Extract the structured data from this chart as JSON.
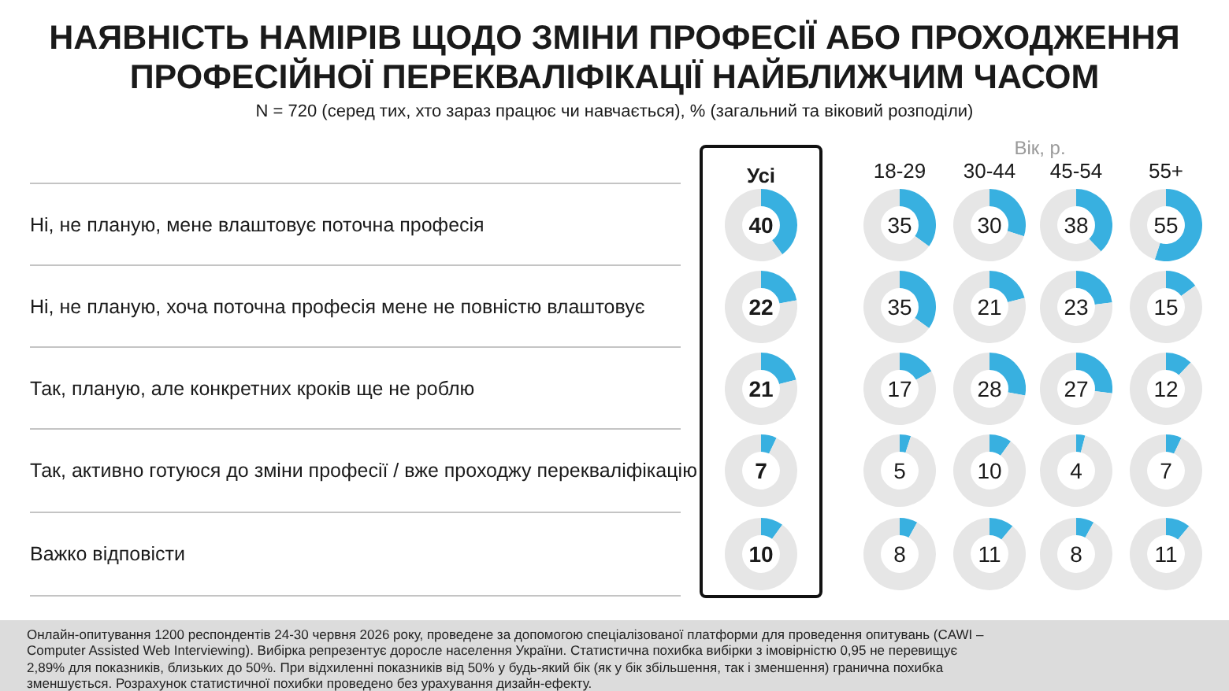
{
  "chart_data": [
    {
      "type": "other",
      "title": "НАЯВНІСТЬ НАМІРІВ ЩОДО ЗМІНИ ПРОФЕСІЇ АБО ПРОХОДЖЕННЯ ПРОФЕСІЙНОЇ ПЕРЕКВАЛІФІКАЦІЇ НАЙБЛИЖЧИМ ЧАСОМ",
      "subtitle": "N = 720 (серед тих, хто зараз працює чи навчається), % (загальний та віковий розподіли)",
      "categories": [
        "Ні, не планую, мене влаштовує поточна професія",
        "Ні, не планую, хоча поточна професія мене не повністю влаштовує",
        "Так, планую, але конкретних кроків ще не роблю",
        "Так, активно готуюся до зміни професії / вже проходжу перекваліфікацію",
        "Важко відповісти"
      ],
      "annotations": [
        "Вік, р.",
        "Усі",
        "18-29",
        "30-44",
        "45-54",
        "55+",
        "Онлайн-опитування 1200 респондентів 24-30 червня 2026 року, проведене за допомогою спеціалізованої платформи для проведення опитувань (CAWI – Computer Assisted Web Interviewing). Вибірка репрезентує доросле населення України. Статистична похибка вибірки з імовірністю 0,95 не перевищує 2,89% для показників, близьких до 50%. При відхиленні показників від 50% у будь-який бік (як у бік збільшення, так і зменшення) гранична похибка зменшується. Розрахунок статистичної похибки проведено без урахування дизайн-ефекту."
      ]
    },
    {
      "type": "donut",
      "categories": [
        null,
        null
      ],
      "values": [
        40,
        60
      ],
      "colors": [
        "#38b0e0",
        "#e6e6e6"
      ],
      "value_labels": [
        "40",
        null
      ]
    },
    {
      "type": "donut",
      "categories": [
        null,
        null
      ],
      "values": [
        35,
        65
      ],
      "colors": [
        "#38b0e0",
        "#e6e6e6"
      ],
      "value_labels": [
        "35",
        null
      ]
    },
    {
      "type": "donut",
      "categories": [
        null,
        null
      ],
      "values": [
        30,
        70
      ],
      "colors": [
        "#38b0e0",
        "#e6e6e6"
      ],
      "value_labels": [
        "30",
        null
      ]
    },
    {
      "type": "donut",
      "categories": [
        null,
        null
      ],
      "values": [
        38,
        62
      ],
      "colors": [
        "#38b0e0",
        "#e6e6e6"
      ],
      "value_labels": [
        "38",
        null
      ]
    },
    {
      "type": "donut",
      "categories": [
        null,
        null
      ],
      "values": [
        55,
        45
      ],
      "colors": [
        "#38b0e0",
        "#e6e6e6"
      ],
      "value_labels": [
        "55",
        null
      ]
    },
    {
      "type": "donut",
      "categories": [
        null,
        null
      ],
      "values": [
        22,
        78
      ],
      "colors": [
        "#38b0e0",
        "#e6e6e6"
      ],
      "value_labels": [
        "22",
        null
      ]
    },
    {
      "type": "donut",
      "categories": [
        null,
        null
      ],
      "values": [
        35,
        65
      ],
      "colors": [
        "#38b0e0",
        "#e6e6e6"
      ],
      "value_labels": [
        "35",
        null
      ]
    },
    {
      "type": "donut",
      "categories": [
        null,
        null
      ],
      "values": [
        21,
        79
      ],
      "colors": [
        "#38b0e0",
        "#e6e6e6"
      ],
      "value_labels": [
        "21",
        null
      ]
    },
    {
      "type": "donut",
      "categories": [
        null,
        null
      ],
      "values": [
        23,
        77
      ],
      "colors": [
        "#38b0e0",
        "#e6e6e6"
      ],
      "value_labels": [
        "23",
        null
      ]
    },
    {
      "type": "donut",
      "categories": [
        null,
        null
      ],
      "values": [
        15,
        85
      ],
      "colors": [
        "#38b0e0",
        "#e6e6e6"
      ],
      "value_labels": [
        "15",
        null
      ]
    },
    {
      "type": "donut",
      "categories": [
        null,
        null
      ],
      "values": [
        21,
        79
      ],
      "colors": [
        "#38b0e0",
        "#e6e6e6"
      ],
      "value_labels": [
        "21",
        null
      ]
    },
    {
      "type": "donut",
      "categories": [
        null,
        null
      ],
      "values": [
        17,
        83
      ],
      "colors": [
        "#38b0e0",
        "#e6e6e6"
      ],
      "value_labels": [
        "17",
        null
      ]
    },
    {
      "type": "donut",
      "categories": [
        null,
        null
      ],
      "values": [
        28,
        72
      ],
      "colors": [
        "#38b0e0",
        "#e6e6e6"
      ],
      "value_labels": [
        "28",
        null
      ]
    },
    {
      "type": "donut",
      "categories": [
        null,
        null
      ],
      "values": [
        27,
        73
      ],
      "colors": [
        "#38b0e0",
        "#e6e6e6"
      ],
      "value_labels": [
        "27",
        null
      ]
    },
    {
      "type": "donut",
      "categories": [
        null,
        null
      ],
      "values": [
        12,
        88
      ],
      "colors": [
        "#38b0e0",
        "#e6e6e6"
      ],
      "value_labels": [
        "12",
        null
      ]
    },
    {
      "type": "donut",
      "categories": [
        null,
        null
      ],
      "values": [
        7,
        93
      ],
      "colors": [
        "#38b0e0",
        "#e6e6e6"
      ],
      "value_labels": [
        "7",
        null
      ]
    },
    {
      "type": "donut",
      "categories": [
        null,
        null
      ],
      "values": [
        5,
        95
      ],
      "colors": [
        "#38b0e0",
        "#e6e6e6"
      ],
      "value_labels": [
        "5",
        null
      ]
    },
    {
      "type": "donut",
      "categories": [
        null,
        null
      ],
      "values": [
        10,
        90
      ],
      "colors": [
        "#38b0e0",
        "#e6e6e6"
      ],
      "value_labels": [
        "10",
        null
      ]
    },
    {
      "type": "donut",
      "categories": [
        null,
        null
      ],
      "values": [
        4,
        96
      ],
      "colors": [
        "#38b0e0",
        "#e6e6e6"
      ],
      "value_labels": [
        "4",
        null
      ]
    },
    {
      "type": "donut",
      "categories": [
        null,
        null
      ],
      "values": [
        7,
        93
      ],
      "colors": [
        "#38b0e0",
        "#e6e6e6"
      ],
      "value_labels": [
        "7",
        null
      ]
    },
    {
      "type": "donut",
      "categories": [
        null,
        null
      ],
      "values": [
        10,
        90
      ],
      "colors": [
        "#38b0e0",
        "#e6e6e6"
      ],
      "value_labels": [
        "10",
        null
      ]
    },
    {
      "type": "donut",
      "categories": [
        null,
        null
      ],
      "values": [
        8,
        92
      ],
      "colors": [
        "#38b0e0",
        "#e6e6e6"
      ],
      "value_labels": [
        "8",
        null
      ]
    },
    {
      "type": "donut",
      "categories": [
        null,
        null
      ],
      "values": [
        11,
        89
      ],
      "colors": [
        "#38b0e0",
        "#e6e6e6"
      ],
      "value_labels": [
        "11",
        null
      ]
    },
    {
      "type": "donut",
      "categories": [
        null,
        null
      ],
      "values": [
        8,
        92
      ],
      "colors": [
        "#38b0e0",
        "#e6e6e6"
      ],
      "value_labels": [
        "8",
        null
      ]
    },
    {
      "type": "donut",
      "categories": [
        null,
        null
      ],
      "values": [
        11,
        89
      ],
      "colors": [
        "#38b0e0",
        "#e6e6e6"
      ],
      "value_labels": [
        "11",
        null
      ]
    }
  ]
}
